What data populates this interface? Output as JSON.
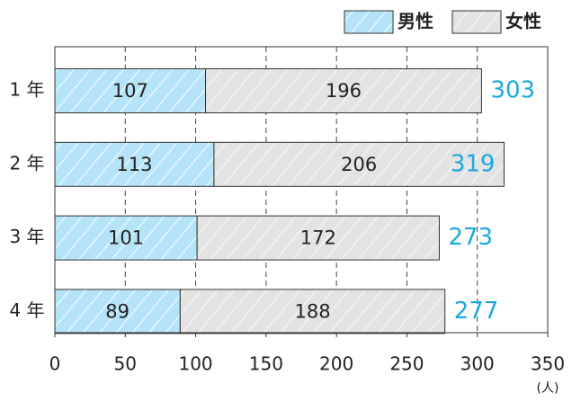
{
  "chart_data": {
    "type": "stacked-barh",
    "categories": [
      "1 年",
      "2 年",
      "3 年",
      "4 年"
    ],
    "series": [
      {
        "name": "男性",
        "color": "#b5e4f8",
        "values": [
          107,
          113,
          101,
          89
        ]
      },
      {
        "name": "女性",
        "color": "#e3e3e3",
        "values": [
          196,
          206,
          172,
          188
        ]
      }
    ],
    "totals": [
      303,
      319,
      273,
      277
    ],
    "totals_color": "#1ba8e0",
    "xlim": [
      0,
      350
    ],
    "xticks": [
      0,
      50,
      100,
      150,
      200,
      250,
      300,
      350
    ],
    "x_unit": "(人)",
    "grid": true,
    "legend": "top-right"
  }
}
